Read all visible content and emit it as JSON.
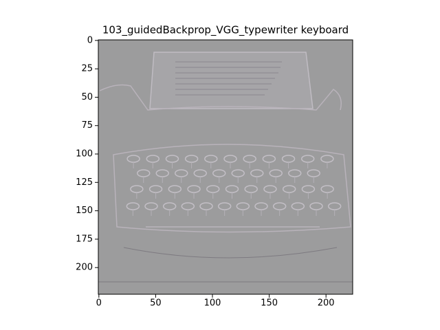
{
  "chart_data": {
    "type": "image",
    "title": "103_guidedBackprop_VGG_typewriter keyboard",
    "xlim": [
      -0.5,
      223.5
    ],
    "ylim": [
      223.5,
      -0.5
    ],
    "xticks": [
      0,
      50,
      100,
      150,
      200
    ],
    "yticks": [
      0,
      25,
      50,
      75,
      100,
      125,
      150,
      175,
      200
    ]
  }
}
